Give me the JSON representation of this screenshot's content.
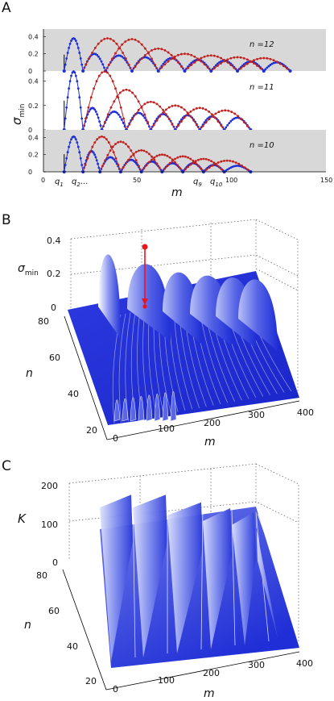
{
  "panel_labels": {
    "A": "A",
    "B": "B",
    "C": "C"
  },
  "chart_data": [
    {
      "panel": "A",
      "type": "line",
      "xlabel": "m",
      "ylabel": "σ",
      "ylabel_sub": "min",
      "xlim": [
        0,
        150
      ],
      "xticks": [
        "0",
        "50",
        "100",
        "150"
      ],
      "x_extra_labels": [
        {
          "text": "q",
          "sub": "1",
          "x": 11
        },
        {
          "text": "q",
          "sub": "2",
          "suffix": "...",
          "x": 21
        },
        {
          "text": "q",
          "sub": "9",
          "x": 101
        },
        {
          "text": "q",
          "sub": "10",
          "x": 110
        }
      ],
      "colors": {
        "upper": "#c0201e",
        "lower": "#1e2fd6",
        "band": "#d8d8d8"
      },
      "subpanels": [
        {
          "label": "n =12",
          "n": 12,
          "ylim": [
            0,
            0.45
          ],
          "yticks": [
            "0",
            "0.2",
            "0.4"
          ],
          "q": [
            11,
            21,
            33,
            47,
            61,
            75,
            89,
            103,
            117,
            131
          ],
          "peaks_upper": [
            0.38,
            0.37,
            0.26,
            0.2,
            0.18,
            0.16,
            0.15
          ],
          "peaks_lower": [
            0.38,
            0.2,
            0.18,
            0.16,
            0.15,
            0.13,
            0.12,
            0.11,
            0.1
          ]
        },
        {
          "label": "n =11",
          "n": 11,
          "ylim": [
            0,
            0.45
          ],
          "yticks": [
            "0",
            "0.2",
            "0.4"
          ],
          "q": [
            11,
            21,
            31,
            44,
            57,
            70,
            83,
            96,
            110
          ],
          "peaks_upper": [
            0.48,
            0.33,
            0.23,
            0.2,
            0.18,
            0.16
          ],
          "peaks_lower": [
            0.48,
            0.18,
            0.15,
            0.14,
            0.13,
            0.12,
            0.11,
            0.1
          ]
        },
        {
          "label": "n =10",
          "n": 10,
          "ylim": [
            0,
            0.45
          ],
          "yticks": [
            "0",
            "0.2",
            "0.4"
          ],
          "q": [
            11,
            21,
            30,
            41,
            52,
            63,
            74,
            85,
            96,
            110
          ],
          "peaks_upper": [
            0.41,
            0.35,
            0.25,
            0.2,
            0.18,
            0.15,
            0.13
          ],
          "peaks_lower": [
            0.41,
            0.24,
            0.17,
            0.14,
            0.12,
            0.1,
            0.1,
            0.08,
            0.07
          ]
        }
      ]
    },
    {
      "panel": "B",
      "type": "surface",
      "zlabel": "σ",
      "zlabel_sub": "min",
      "xlabel": "m",
      "ylabel": "n",
      "xticks": [
        "0",
        "100",
        "200",
        "300",
        "400"
      ],
      "yticks": [
        "20",
        "40",
        "60",
        "80"
      ],
      "zticks": [
        "0",
        "0.2",
        "0.4"
      ],
      "xlim": [
        0,
        400
      ],
      "ylim": [
        20,
        80
      ],
      "zlim": [
        0,
        0.4
      ],
      "lobe_peaks": [
        0.4,
        0.33,
        0.27,
        0.25,
        0.24,
        0.23
      ],
      "marker": {
        "color": "#e8141e",
        "z_from": 0.36,
        "z_to": 0.1
      }
    },
    {
      "panel": "C",
      "type": "surface",
      "zlabel": "K",
      "xlabel": "m",
      "ylabel": "n",
      "xticks": [
        "0",
        "100",
        "200",
        "300",
        "400"
      ],
      "yticks": [
        "20",
        "40",
        "60",
        "80"
      ],
      "zticks": [
        "0",
        "100",
        "200"
      ],
      "xlim": [
        0,
        400
      ],
      "ylim": [
        20,
        80
      ],
      "zlim": [
        0,
        200
      ],
      "step_tops": [
        160,
        160,
        140,
        125,
        115,
        110
      ]
    }
  ]
}
